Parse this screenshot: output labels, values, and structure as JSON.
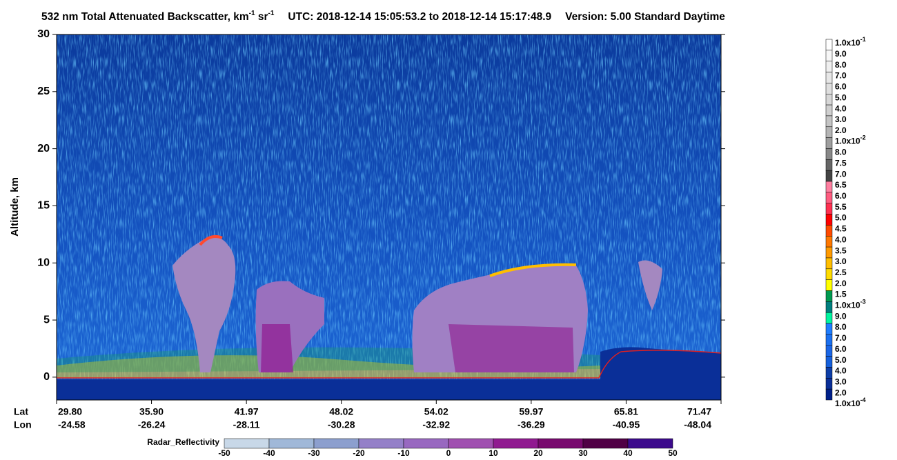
{
  "chart_data": {
    "type": "heatmap",
    "title": {
      "text": "532 nm Total Attenuated Backscatter, km",
      "exp1": "-1",
      "unit2": " sr",
      "exp2": "-1",
      "utc": "UTC:  2018-12-14 15:05:53.2  to  2018-12-14 15:17:48.9",
      "version": "Version: 5.00  Standard  Daytime"
    },
    "ylabel": "Altitude, km",
    "ylim": [
      -2,
      30
    ],
    "yticks": [
      0,
      5,
      10,
      15,
      20,
      25,
      30
    ],
    "lat_label": "Lat",
    "lon_label": "Lon",
    "lat": [
      "29.80",
      "35.90",
      "41.97",
      "48.02",
      "54.02",
      "59.97",
      "65.81",
      "71.47"
    ],
    "lon": [
      "-24.58",
      "-26.24",
      "-28.11",
      "-30.28",
      "-32.92",
      "-36.29",
      "-40.95",
      "-48.04"
    ],
    "colorbar": {
      "labels": [
        {
          "base": "1.0x10",
          "exp": "-1"
        },
        "9.0",
        "8.0",
        "7.0",
        "6.0",
        "5.0",
        "4.0",
        "3.0",
        "2.0",
        {
          "base": "1.0x10",
          "exp": "-2"
        },
        "8.0",
        "7.5",
        "7.0",
        "6.5",
        "6.0",
        "5.5",
        "5.0",
        "4.5",
        "4.0",
        "3.5",
        "3.0",
        "2.5",
        "2.0",
        "1.5",
        {
          "base": "1.0x10",
          "exp": "-3"
        },
        "9.0",
        "8.0",
        "7.0",
        "6.0",
        "5.0",
        "4.0",
        "3.0",
        "2.0",
        {
          "base": "1.0x10",
          "exp": "-4"
        }
      ],
      "colors": [
        "#ffffff",
        "#f7f7f7",
        "#efefef",
        "#e7e7e7",
        "#dfdfdf",
        "#d7d7d7",
        "#cfcfcf",
        "#c4c4c4",
        "#b5b5b5",
        "#9e9e9e",
        "#888888",
        "#666666",
        "#444444",
        "#ff7fa0",
        "#ff5c80",
        "#ff3050",
        "#ff0000",
        "#ff4a00",
        "#ff7800",
        "#ff9a00",
        "#ffbe00",
        "#ffdc00",
        "#ffff00",
        "#009a50",
        "#007f7f",
        "#00f5a0",
        "#1e7dff",
        "#1a70f0",
        "#1a66e6",
        "#1560dc",
        "#0d3ea8",
        "#0a2f98",
        "#00208a"
      ]
    },
    "radar": {
      "label": "Radar_Reflectivity",
      "ticks": [
        -50,
        -40,
        -30,
        -20,
        -10,
        0,
        10,
        20,
        30,
        40,
        50
      ],
      "colors": [
        "#c8d8e8",
        "#a0b8d8",
        "#8c9fce",
        "#9480c8",
        "#9868c0",
        "#a050b0",
        "#901a90",
        "#780a6e",
        "#500045",
        "#3c0a8c"
      ]
    }
  }
}
